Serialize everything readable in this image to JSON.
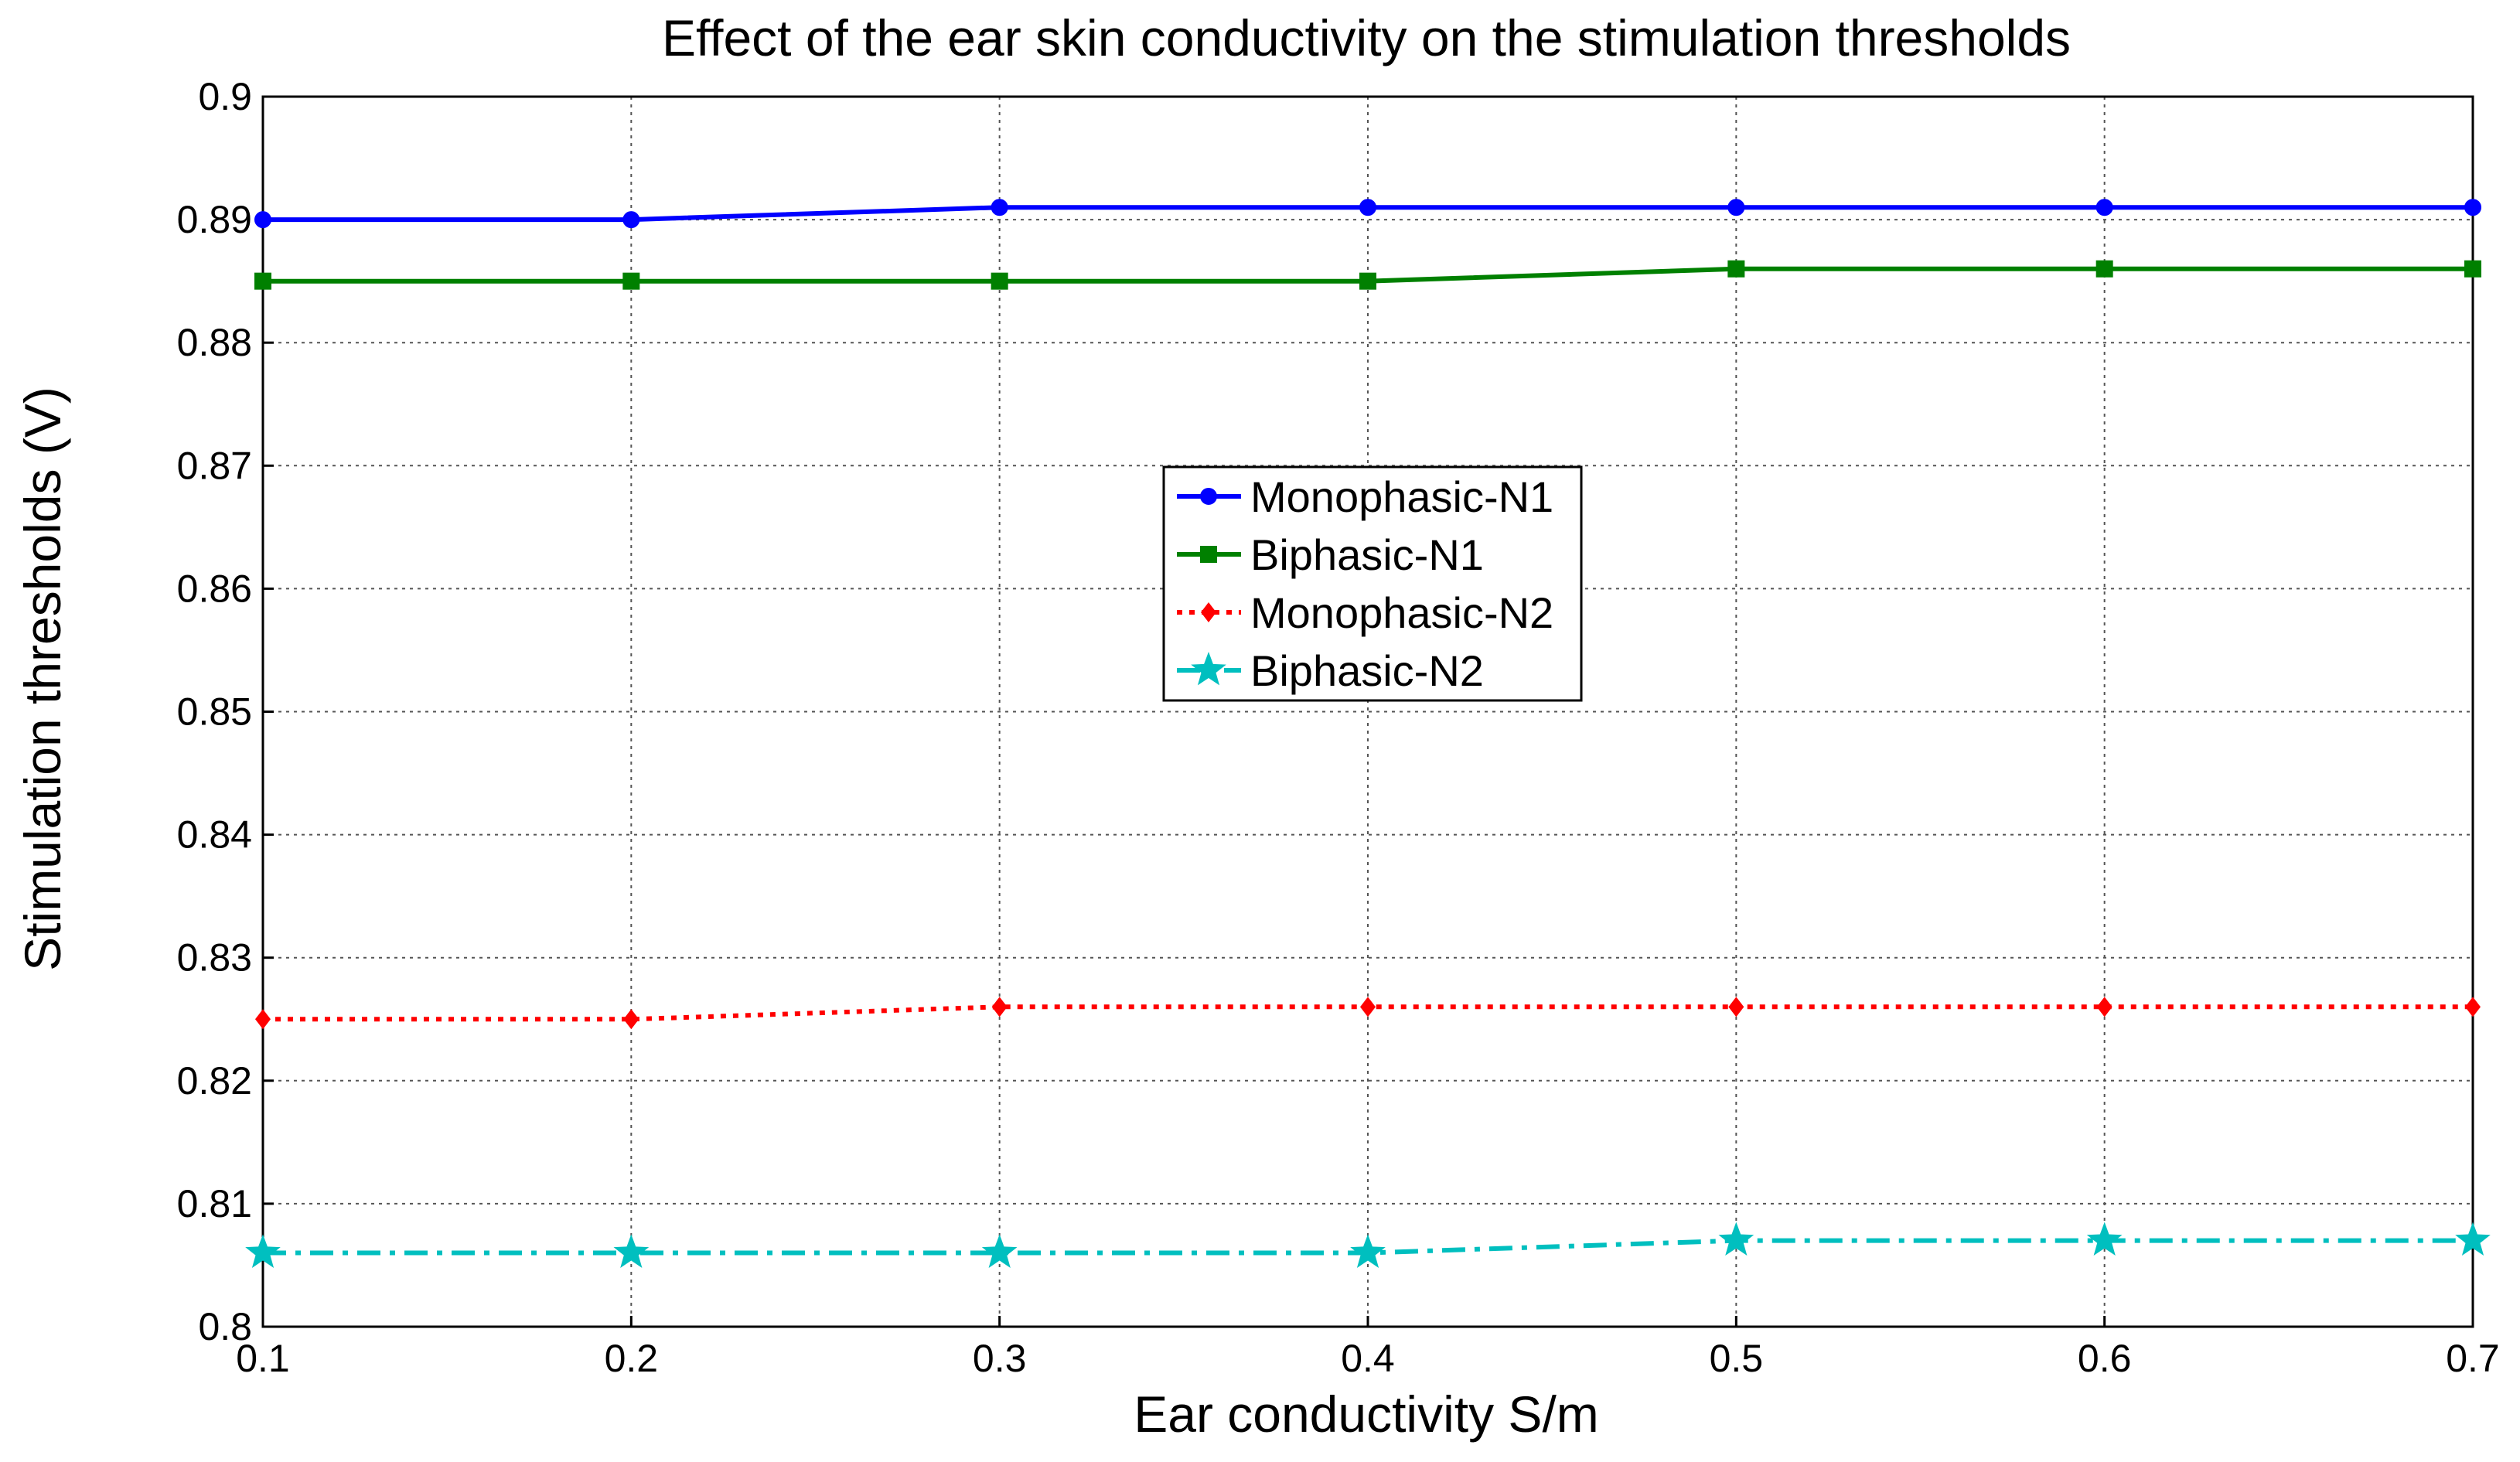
{
  "chart_data": {
    "type": "line",
    "title": "Effect of the ear skin conductivity on the stimulation thresholds",
    "xlabel": "Ear conductivity S/m",
    "ylabel": "Stimulation thresholds (V)",
    "x": [
      0.1,
      0.2,
      0.3,
      0.4,
      0.5,
      0.6,
      0.7
    ],
    "xlim": [
      0.1,
      0.7
    ],
    "ylim": [
      0.8,
      0.9
    ],
    "xticks": [
      "0.1",
      "0.2",
      "0.3",
      "0.4",
      "0.5",
      "0.6",
      "0.7"
    ],
    "yticks": [
      "0.8",
      "0.81",
      "0.82",
      "0.83",
      "0.84",
      "0.85",
      "0.86",
      "0.87",
      "0.88",
      "0.89",
      "0.9"
    ],
    "grid": true,
    "legend_position": "center",
    "series": [
      {
        "name": "Monophasic-N1",
        "color": "#0000ff",
        "marker": "circle",
        "line_style": "solid",
        "values": [
          0.89,
          0.89,
          0.891,
          0.891,
          0.891,
          0.891,
          0.891
        ]
      },
      {
        "name": "Biphasic-N1",
        "color": "#008000",
        "marker": "square",
        "line_style": "solid",
        "values": [
          0.885,
          0.885,
          0.885,
          0.885,
          0.886,
          0.886,
          0.886
        ]
      },
      {
        "name": "Monophasic-N2",
        "color": "#ff0000",
        "marker": "diamond",
        "line_style": "dotted",
        "values": [
          0.825,
          0.825,
          0.826,
          0.826,
          0.826,
          0.826,
          0.826
        ]
      },
      {
        "name": "Biphasic-N2",
        "color": "#00bfbf",
        "marker": "star",
        "line_style": "dashdot",
        "values": [
          0.806,
          0.806,
          0.806,
          0.806,
          0.807,
          0.807,
          0.807
        ]
      }
    ]
  }
}
